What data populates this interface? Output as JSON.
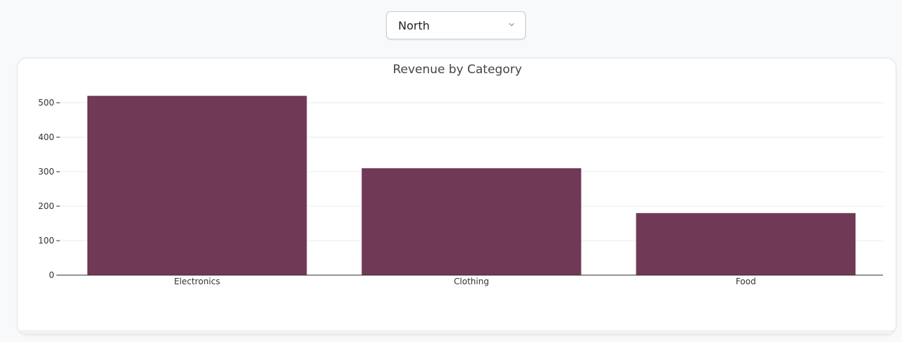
{
  "filter": {
    "selected": "North",
    "icon": "chevron-down-icon"
  },
  "colors": {
    "bar": "#703a56",
    "grid": "#e9ebee",
    "axis": "#2b2b2b",
    "text": "#333333",
    "title": "#444444"
  },
  "chart_data": {
    "type": "bar",
    "title": "Revenue by Category",
    "xlabel": "",
    "ylabel": "",
    "categories": [
      "Electronics",
      "Clothing",
      "Food"
    ],
    "values": [
      520,
      310,
      180
    ],
    "ylim": [
      0,
      500
    ],
    "yticks": [
      0,
      100,
      200,
      300,
      400,
      500
    ],
    "grid": true,
    "legend": "none"
  }
}
